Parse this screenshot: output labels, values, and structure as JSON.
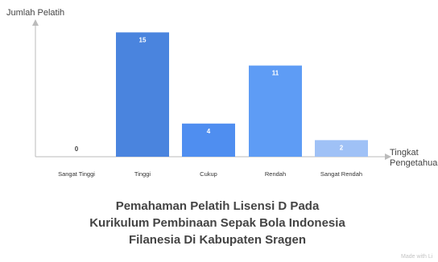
{
  "chart_data": {
    "type": "bar",
    "categories": [
      "Sangat Tinggi",
      "Tinggi",
      "Cukup",
      "Rendah",
      "Sangat Rendah"
    ],
    "values": [
      0,
      15,
      4,
      11,
      2
    ],
    "colors": [
      "#3b78d8",
      "#4a84de",
      "#4f8ef0",
      "#5e9cf5",
      "#9fc1f6"
    ],
    "title": "Pemahaman Pelatih Lisensi D Pada Kurikulum Pembinaan Sepak Bola Indonesia Filanesia Di Kabupaten Sragen",
    "ylabel": "Jumlah Pelatih",
    "xlabel": "Tingkat Pengetahuan",
    "ylim": [
      0,
      16
    ],
    "grid": false,
    "legend": "none"
  },
  "watermark": "Made with Li"
}
